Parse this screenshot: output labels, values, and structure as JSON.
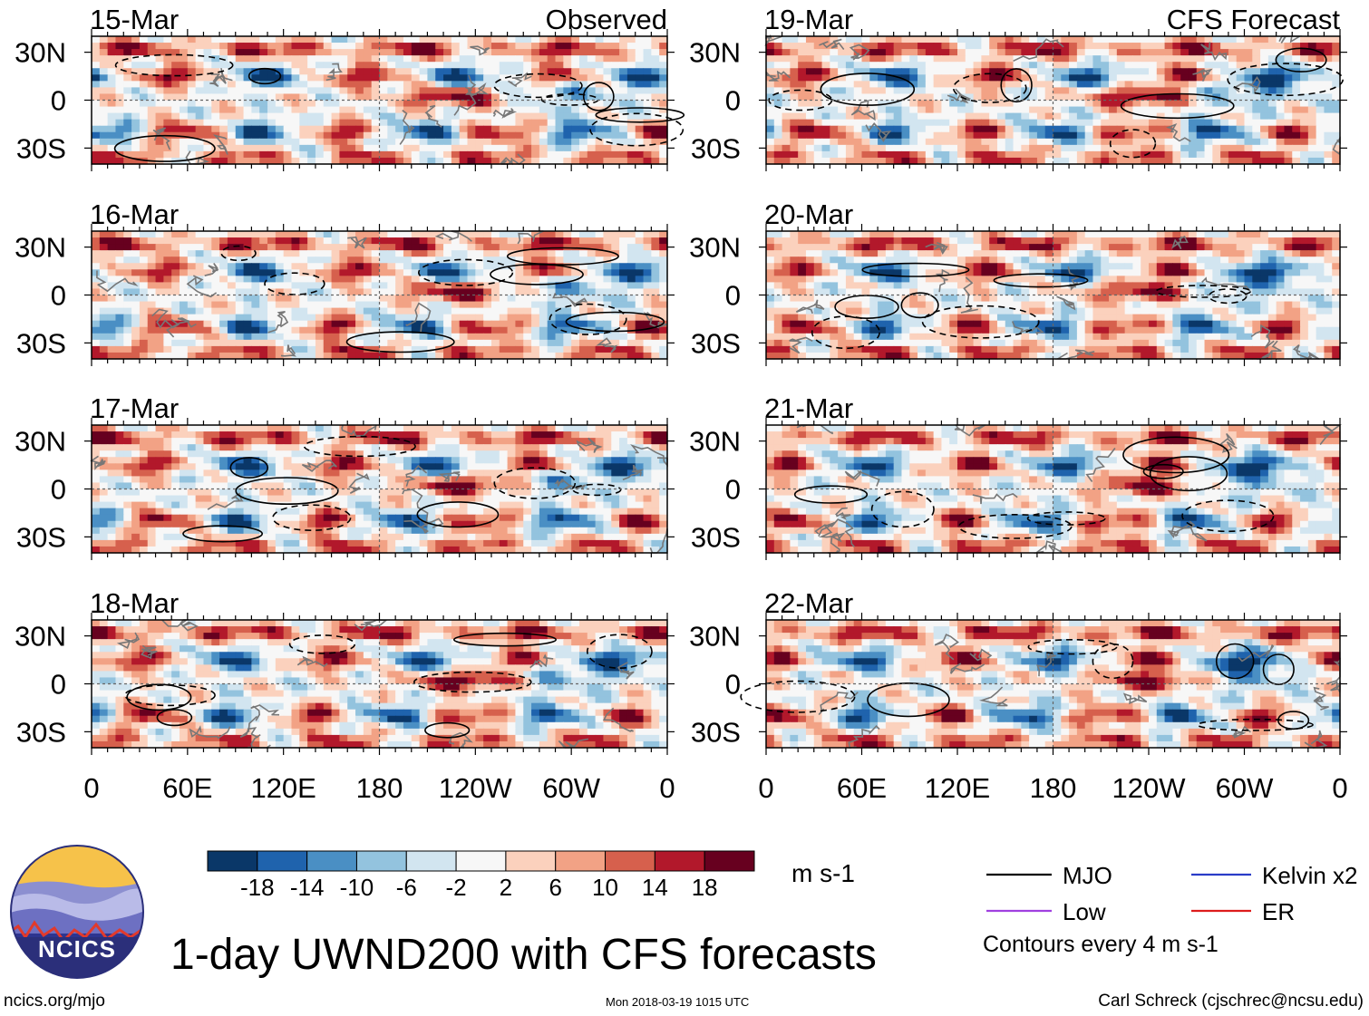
{
  "chart_data": {
    "type": "heatmap",
    "title": "1-day UWND200 with CFS forecasts",
    "variable": "UWND200",
    "units": "m s-1",
    "panels": [
      {
        "date": "15-Mar",
        "source": "Observed",
        "column": "left"
      },
      {
        "date": "16-Mar",
        "source": "",
        "column": "left"
      },
      {
        "date": "17-Mar",
        "source": "",
        "column": "left"
      },
      {
        "date": "18-Mar",
        "source": "",
        "column": "left"
      },
      {
        "date": "19-Mar",
        "source": "CFS Forecast",
        "column": "right"
      },
      {
        "date": "20-Mar",
        "source": "",
        "column": "right"
      },
      {
        "date": "21-Mar",
        "source": "",
        "column": "right"
      },
      {
        "date": "22-Mar",
        "source": "",
        "column": "right"
      }
    ],
    "lat_ticks": [
      {
        "label": "30N",
        "value": 30
      },
      {
        "label": "0",
        "value": 0
      },
      {
        "label": "30S",
        "value": -30
      }
    ],
    "lon_ticks": [
      {
        "label": "0",
        "value": 0
      },
      {
        "label": "60E",
        "value": 60
      },
      {
        "label": "120E",
        "value": 120
      },
      {
        "label": "180",
        "value": 180
      },
      {
        "label": "120W",
        "value": 240
      },
      {
        "label": "60W",
        "value": 300
      },
      {
        "label": "0",
        "value": 360
      }
    ],
    "xlim": [
      0,
      360
    ],
    "ylim": [
      -40,
      40
    ],
    "colorbar": {
      "labels": [
        "-18",
        "-14",
        "-10",
        "-6",
        "-2",
        "2",
        "6",
        "10",
        "14",
        "18"
      ],
      "colors": [
        "#0a3768",
        "#1f63ad",
        "#4a8fc4",
        "#93c3de",
        "#d2e5f0",
        "#f7f7f7",
        "#fbd1bd",
        "#f2a285",
        "#d6604d",
        "#b2182b",
        "#67001f"
      ],
      "units": "m s-1"
    },
    "legend": [
      {
        "label": "MJO",
        "color": "#000000"
      },
      {
        "label": "Kelvin x2",
        "color": "#2a3cc8"
      },
      {
        "label": "Low",
        "color": "#a040e0"
      },
      {
        "label": "ER",
        "color": "#dd1c1c"
      }
    ],
    "contour_note": "Contours every 4 m s-1",
    "logo_text": "NCICS",
    "footer": {
      "url": "ncics.org/mjo",
      "timestamp": "Mon 2018-03-19 1015 UTC",
      "author": "Carl Schreck (cjschrec@ncsu.edu)"
    }
  }
}
